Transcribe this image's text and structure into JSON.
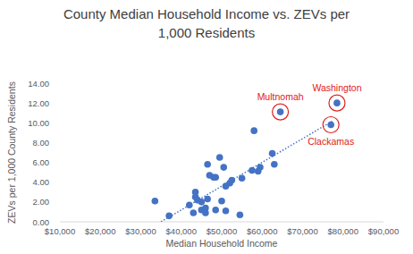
{
  "chart_data": {
    "type": "scatter",
    "title": "County Median Household Income vs. ZEVs per\n1,000 Residents",
    "x_label": "Median Household Income",
    "y_label": "ZEVs per 1,000 County Residents",
    "color": "#4472c4",
    "marker": "circle",
    "grid": false,
    "x": [
      33500,
      37000,
      42000,
      43000,
      43500,
      43500,
      44000,
      45000,
      45000,
      46000,
      46000,
      46500,
      46500,
      47000,
      48000,
      48500,
      48500,
      49500,
      50000,
      50500,
      51000,
      51000,
      52000,
      52500,
      54500,
      55000,
      57500,
      58000,
      59000,
      59500,
      62500,
      63000,
      64500,
      77000,
      78500
    ],
    "values": [
      2.1,
      0.6,
      1.7,
      0.9,
      2.5,
      3.0,
      2.2,
      2.0,
      1.2,
      1.4,
      0.9,
      2.3,
      5.8,
      4.7,
      4.5,
      4.5,
      1.2,
      6.5,
      2.1,
      5.5,
      3.6,
      1.1,
      3.9,
      4.2,
      0.7,
      4.4,
      5.2,
      9.2,
      5.1,
      5.5,
      6.9,
      5.8,
      11.1,
      9.8,
      12.0
    ],
    "trendline": {
      "x": [
        35000,
        77500
      ],
      "values": [
        0.0,
        10.2
      ],
      "color": "#4472c4",
      "line_style": "dotted"
    },
    "annotations": [
      {
        "text": "Multnomah",
        "x": 64500,
        "y": 11.1,
        "color": "#e02020",
        "position": "above"
      },
      {
        "text": "Washington",
        "x": 78500,
        "y": 12.0,
        "color": "#e02020",
        "position": "above"
      },
      {
        "text": "Clackamas",
        "x": 77000,
        "y": 9.8,
        "color": "#e02020",
        "position": "below"
      }
    ],
    "xlim": [
      10000,
      90000
    ],
    "xticks": [
      {
        "value": 10000,
        "label": "$10,000"
      },
      {
        "value": 20000,
        "label": "$20,000"
      },
      {
        "value": 30000,
        "label": "$30,000"
      },
      {
        "value": 40000,
        "label": "$40,000"
      },
      {
        "value": 50000,
        "label": "$50,000"
      },
      {
        "value": 60000,
        "label": "$60,000"
      },
      {
        "value": 70000,
        "label": "$70,000"
      },
      {
        "value": 80000,
        "label": "$80,000"
      },
      {
        "value": 90000,
        "label": "$90,000"
      }
    ],
    "ylim": [
      0,
      14
    ],
    "yticks": [
      {
        "value": 0,
        "label": "0.00"
      },
      {
        "value": 2,
        "label": "2.00"
      },
      {
        "value": 4,
        "label": "4.00"
      },
      {
        "value": 6,
        "label": "6.00"
      },
      {
        "value": 8,
        "label": "8.00"
      },
      {
        "value": 10,
        "label": "10.00"
      },
      {
        "value": 12,
        "label": "12.00"
      },
      {
        "value": 14,
        "label": "14.00"
      }
    ]
  }
}
